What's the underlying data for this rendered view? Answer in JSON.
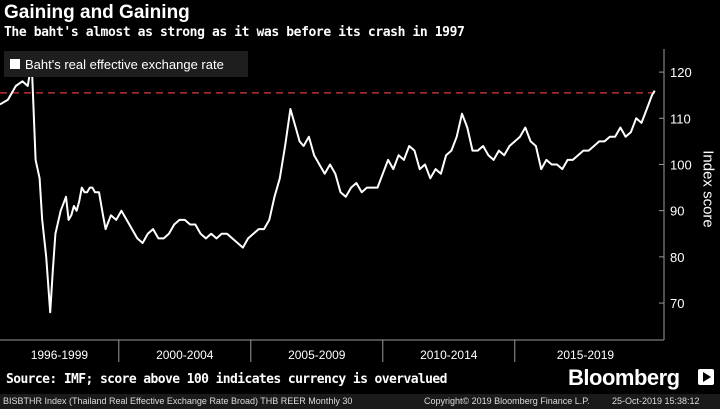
{
  "header": {
    "title": "Gaining and Gaining",
    "subtitle": "The baht's almost as strong as it was before its crash in 1997"
  },
  "legend": {
    "label": "Baht's real effective exchange rate",
    "color": "#ffffff"
  },
  "source": "Source: IMF; score above 100 indicates currency is overvalued",
  "brand": "Bloomberg",
  "footer": {
    "left": "BISBTHR Index (Thailand Real Effective Exchange Rate Broad) THB REER  Monthly 30",
    "center": "Copyright© 2019 Bloomberg Finance L.P.",
    "right": "25-Oct-2019 15:38:12"
  },
  "chart_data": {
    "type": "line",
    "title": "Gaining and Gaining",
    "subtitle": "The baht's almost as strong as it was before its crash in 1997",
    "ylabel": "Index score",
    "ylim": [
      62,
      125
    ],
    "xlim": [
      1995.0,
      2019.85
    ],
    "y_ticks": [
      70,
      80,
      90,
      100,
      110,
      120
    ],
    "x_category_labels": [
      "1996-1999",
      "2000-2004",
      "2005-2009",
      "2010-2014",
      "2015-2019"
    ],
    "x_category_bounds": [
      [
        1995.0,
        1999.5
      ],
      [
        1999.5,
        2004.5
      ],
      [
        2004.5,
        2009.5
      ],
      [
        2009.5,
        2014.5
      ],
      [
        2014.5,
        2019.85
      ]
    ],
    "reference_line": {
      "y": 115.5,
      "color": "#e0383e",
      "style": "dashed"
    },
    "legend_position": "top-left",
    "series": [
      {
        "name": "Baht's real effective exchange rate",
        "color": "#ffffff",
        "x": [
          1995.0,
          1995.3,
          1995.6,
          1995.85,
          1996.05,
          1996.2,
          1996.35,
          1996.5,
          1996.6,
          1996.75,
          1996.9,
          1997.0,
          1997.1,
          1997.3,
          1997.5,
          1997.6,
          1997.7,
          1997.8,
          1997.9,
          1998.0,
          1998.1,
          1998.2,
          1998.3,
          1998.4,
          1998.5,
          1998.6,
          1998.75,
          1998.9,
          1999.0,
          1999.2,
          1999.4,
          1999.6,
          1999.8,
          2000.0,
          2000.2,
          2000.4,
          2000.6,
          2000.8,
          2001.0,
          2001.2,
          2001.4,
          2001.6,
          2001.8,
          2002.0,
          2002.2,
          2002.4,
          2002.6,
          2002.8,
          2003.0,
          2003.2,
          2003.4,
          2003.6,
          2003.8,
          2004.0,
          2004.2,
          2004.4,
          2004.6,
          2004.8,
          2005.0,
          2005.2,
          2005.4,
          2005.6,
          2005.8,
          2006.0,
          2006.2,
          2006.35,
          2006.5,
          2006.7,
          2006.9,
          2007.1,
          2007.3,
          2007.5,
          2007.7,
          2007.9,
          2008.1,
          2008.3,
          2008.5,
          2008.7,
          2008.9,
          2009.1,
          2009.3,
          2009.5,
          2009.7,
          2009.9,
          2010.1,
          2010.3,
          2010.5,
          2010.7,
          2010.9,
          2011.1,
          2011.3,
          2011.5,
          2011.7,
          2011.9,
          2012.1,
          2012.3,
          2012.5,
          2012.7,
          2012.9,
          2013.1,
          2013.3,
          2013.5,
          2013.7,
          2013.9,
          2014.1,
          2014.3,
          2014.5,
          2014.7,
          2014.9,
          2015.1,
          2015.3,
          2015.5,
          2015.7,
          2015.9,
          2016.1,
          2016.3,
          2016.5,
          2016.7,
          2016.9,
          2017.1,
          2017.3,
          2017.5,
          2017.7,
          2017.9,
          2018.1,
          2018.3,
          2018.5,
          2018.7,
          2018.9,
          2019.1,
          2019.3,
          2019.5,
          2019.7,
          2019.8
        ],
        "values": [
          113,
          114,
          117,
          118,
          117,
          122,
          101,
          97,
          88,
          80,
          68,
          77,
          85,
          90,
          93,
          88,
          89,
          91,
          90,
          92,
          95,
          94,
          94,
          95,
          95,
          94,
          94,
          89,
          86,
          89,
          88,
          90,
          88,
          86,
          84,
          83,
          85,
          86,
          84,
          84,
          85,
          87,
          88,
          88,
          87,
          87,
          85,
          84,
          85,
          84,
          85,
          85,
          84,
          83,
          82,
          84,
          85,
          86,
          86,
          88,
          93,
          97,
          104,
          112,
          108,
          105,
          104,
          106,
          102,
          100,
          98,
          100,
          98,
          94,
          93,
          95,
          96,
          94,
          95,
          95,
          95,
          98,
          101,
          99,
          102,
          101,
          104,
          103,
          99,
          100,
          97,
          99,
          98,
          102,
          103,
          106,
          111,
          108,
          103,
          103,
          104,
          102,
          101,
          103,
          102,
          104,
          105,
          106,
          108,
          105,
          104,
          99,
          101,
          100,
          100,
          99,
          101,
          101,
          102,
          103,
          103,
          104,
          105,
          105,
          106,
          106,
          108,
          106,
          107,
          110,
          109,
          112,
          115,
          116
        ]
      }
    ]
  }
}
